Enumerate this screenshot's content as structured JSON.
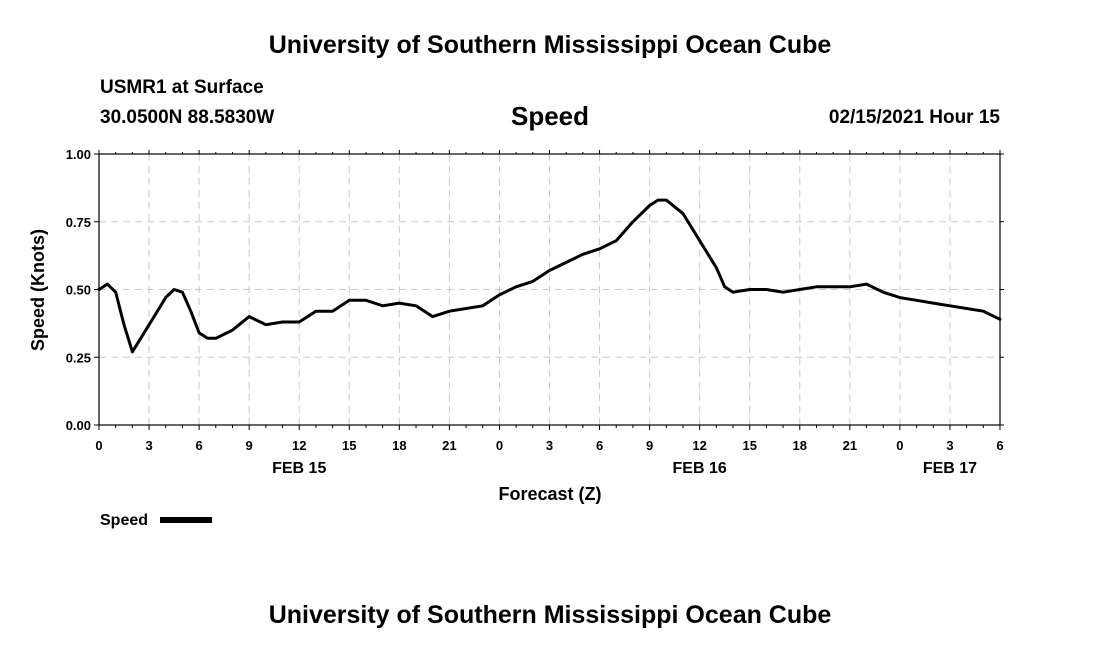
{
  "header": {
    "title_top": "University of Southern Mississippi Ocean Cube",
    "station": "USMR1 at Surface",
    "coords": "30.0500N 88.5830W",
    "date": "02/15/2021 Hour 15",
    "title_bottom": "University of Southern Mississippi Ocean Cube"
  },
  "chart_data": {
    "type": "line",
    "title": "Speed",
    "ylabel": "Speed (Knots)",
    "xlabel": "Forecast (Z)",
    "ylim": [
      0,
      1
    ],
    "xlim": [
      0,
      54
    ],
    "grid": true,
    "y_ticks": [
      {
        "value": 0,
        "label": "0.00"
      },
      {
        "value": 0.25,
        "label": "0.25"
      },
      {
        "value": 0.5,
        "label": "0.50"
      },
      {
        "value": 0.75,
        "label": "0.75"
      },
      {
        "value": 1,
        "label": "1.00"
      }
    ],
    "x_ticks": [
      {
        "value": 0,
        "label": "0"
      },
      {
        "value": 3,
        "label": "3"
      },
      {
        "value": 6,
        "label": "6"
      },
      {
        "value": 9,
        "label": "9"
      },
      {
        "value": 12,
        "label": "12"
      },
      {
        "value": 15,
        "label": "15"
      },
      {
        "value": 18,
        "label": "18"
      },
      {
        "value": 21,
        "label": "21"
      },
      {
        "value": 24,
        "label": "0"
      },
      {
        "value": 27,
        "label": "3"
      },
      {
        "value": 30,
        "label": "6"
      },
      {
        "value": 33,
        "label": "9"
      },
      {
        "value": 36,
        "label": "12"
      },
      {
        "value": 39,
        "label": "15"
      },
      {
        "value": 42,
        "label": "18"
      },
      {
        "value": 45,
        "label": "21"
      },
      {
        "value": 48,
        "label": "0"
      },
      {
        "value": 51,
        "label": "3"
      },
      {
        "value": 54,
        "label": "6"
      }
    ],
    "day_labels": [
      {
        "value": 12,
        "label": "FEB 15"
      },
      {
        "value": 36,
        "label": "FEB 16"
      },
      {
        "value": 51,
        "label": "FEB 17"
      }
    ],
    "legend": {
      "label": "Speed",
      "position": "bottom-left"
    },
    "series": [
      {
        "name": "Speed",
        "x": [
          0,
          0.5,
          1,
          1.5,
          2,
          3,
          4,
          4.5,
          5,
          5.5,
          6,
          6.5,
          7,
          8,
          9,
          10,
          11,
          12,
          13,
          14,
          15,
          16,
          17,
          18,
          19,
          20,
          21,
          22,
          23,
          24,
          25,
          26,
          27,
          28,
          29,
          30,
          31,
          32,
          33,
          33.5,
          34,
          35,
          36,
          37,
          37.5,
          38,
          39,
          40,
          41,
          42,
          43,
          44,
          45,
          46,
          47,
          48,
          49,
          50,
          51,
          52,
          53,
          54
        ],
        "values": [
          0.5,
          0.52,
          0.49,
          0.37,
          0.27,
          0.37,
          0.47,
          0.5,
          0.49,
          0.42,
          0.34,
          0.32,
          0.32,
          0.35,
          0.4,
          0.37,
          0.38,
          0.38,
          0.42,
          0.42,
          0.46,
          0.46,
          0.44,
          0.45,
          0.44,
          0.4,
          0.42,
          0.43,
          0.44,
          0.48,
          0.51,
          0.53,
          0.57,
          0.6,
          0.63,
          0.65,
          0.68,
          0.75,
          0.81,
          0.83,
          0.83,
          0.78,
          0.68,
          0.58,
          0.51,
          0.49,
          0.5,
          0.5,
          0.49,
          0.5,
          0.51,
          0.51,
          0.51,
          0.52,
          0.49,
          0.47,
          0.46,
          0.45,
          0.44,
          0.43,
          0.42,
          0.39
        ]
      }
    ]
  }
}
